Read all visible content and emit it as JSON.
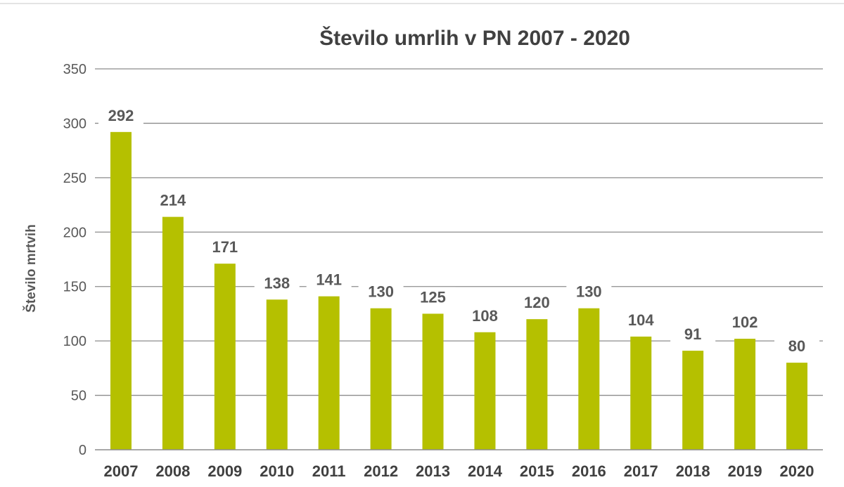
{
  "chart_data": {
    "type": "bar",
    "title": "Število umrlih v PN 2007 - 2020",
    "ylabel": "Število mrtvih",
    "xlabel": "",
    "categories": [
      "2007",
      "2008",
      "2009",
      "2010",
      "2011",
      "2012",
      "2013",
      "2014",
      "2015",
      "2016",
      "2017",
      "2018",
      "2019",
      "2020"
    ],
    "values": [
      292,
      214,
      171,
      138,
      141,
      130,
      125,
      108,
      120,
      130,
      104,
      91,
      102,
      80
    ],
    "ylim": [
      0,
      350
    ],
    "yticks": [
      0,
      50,
      100,
      150,
      200,
      250,
      300,
      350
    ],
    "grid": true,
    "legend": "none",
    "colors": {
      "bar": "#b5c000",
      "label": "#595959",
      "highlight_label": "#e00000"
    },
    "highlight_category": "2020"
  }
}
